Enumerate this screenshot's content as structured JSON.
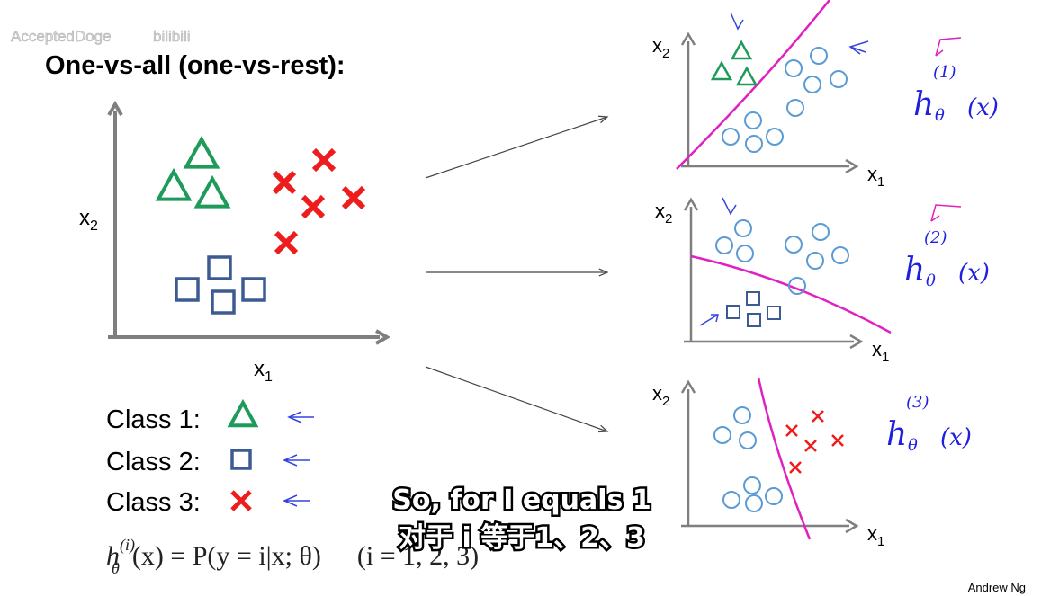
{
  "watermark": {
    "user": "AcceptedDoge",
    "site": "bilibili"
  },
  "title": "One-vs-all (one-vs-rest):",
  "main_plot": {
    "x_label": {
      "base": "x",
      "sub": "1"
    },
    "y_label": {
      "base": "x",
      "sub": "2"
    }
  },
  "sub_plots": [
    {
      "x_label": {
        "base": "x",
        "sub": "1"
      },
      "y_label": {
        "base": "x",
        "sub": "2"
      },
      "hypothesis": {
        "h": "h",
        "theta": "θ",
        "index": "(1)",
        "arg": "(x)"
      }
    },
    {
      "x_label": {
        "base": "x",
        "sub": "1"
      },
      "y_label": {
        "base": "x",
        "sub": "2"
      },
      "hypothesis": {
        "h": "h",
        "theta": "θ",
        "index": "(2)",
        "arg": "(x)"
      }
    },
    {
      "x_label": {
        "base": "x",
        "sub": "1"
      },
      "y_label": {
        "base": "x",
        "sub": "2"
      },
      "hypothesis": {
        "h": "h",
        "theta": "θ",
        "index": "(3)",
        "arg": "(x)"
      }
    }
  ],
  "legend": [
    "Class 1:",
    "Class 2:",
    "Class 3:"
  ],
  "formula": {
    "h": "h",
    "sub": "θ",
    "sup": "(i)",
    "rhs": "(x) = P(y = i|x; θ)",
    "range": "(i = 1, 2, 3)"
  },
  "subtitles": [
    "So, for I equals 1",
    "对于 i 等于1、2、3"
  ],
  "credit": "Andrew Ng"
}
